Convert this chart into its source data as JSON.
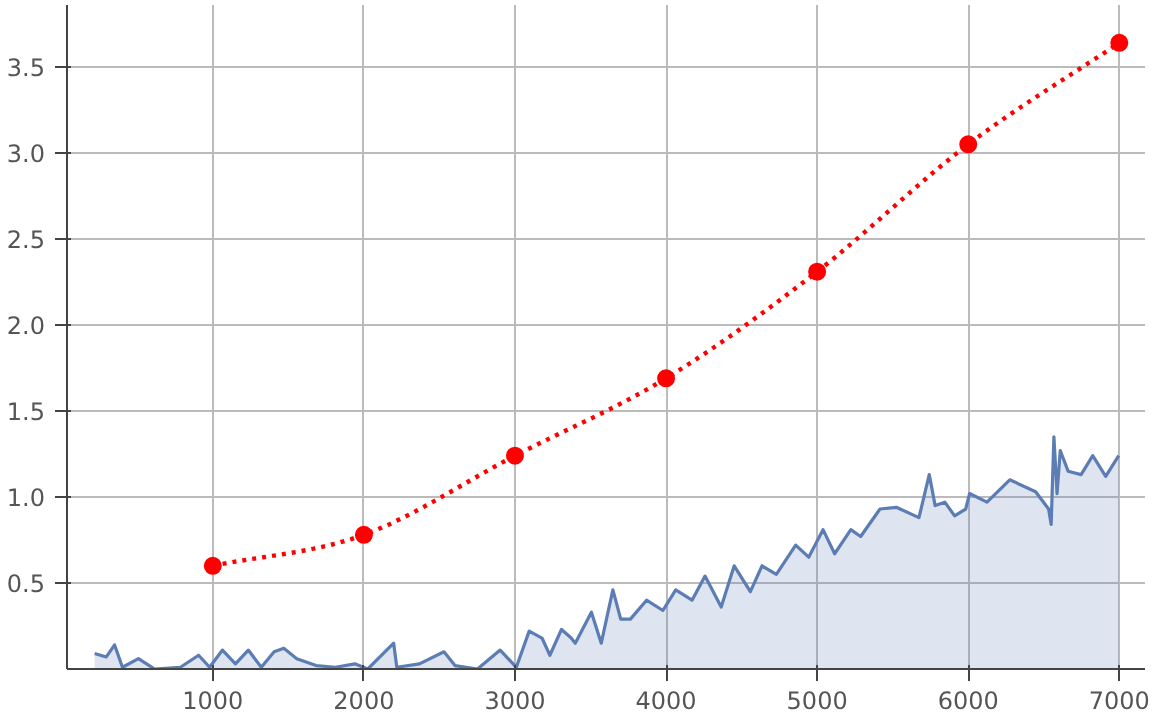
{
  "chart_data": {
    "type": "line",
    "xlim": [
      35,
      7170
    ],
    "ylim": [
      0,
      3.86
    ],
    "xticks": [
      1000,
      2000,
      3000,
      4000,
      5000,
      6000,
      7000
    ],
    "yticks": [
      0.5,
      {
        "value": 1,
        "label": "1.0"
      },
      1.5,
      {
        "value": 2,
        "label": "2.0"
      },
      2.5,
      {
        "value": 3,
        "label": "3.0"
      },
      3.5
    ],
    "grid": true,
    "series": [
      {
        "type": "area",
        "color": "#5b7db4",
        "marker": "none",
        "line_style": "solid",
        "x": [
          218,
          295,
          350,
          402,
          508,
          615,
          786,
          906,
          979,
          1064,
          1150,
          1235,
          1321,
          1406,
          1470,
          1556,
          1684,
          1812,
          1940,
          2026,
          2197,
          2218,
          2368,
          2530,
          2603,
          2752,
          2902,
          3009,
          3094,
          3179,
          3231,
          3308,
          3372,
          3399,
          3506,
          3571,
          3648,
          3700,
          3764,
          3871,
          3979,
          4064,
          4172,
          4258,
          4365,
          4451,
          4558,
          4635,
          4730,
          4858,
          4944,
          5039,
          5116,
          5223,
          5288,
          5416,
          5524,
          5674,
          5742,
          5781,
          5845,
          5910,
          5983,
          6009,
          6124,
          6275,
          6446,
          6532,
          6549,
          6567,
          6588,
          6609,
          6661,
          6747,
          6824,
          6910,
          6996
        ],
        "values": [
          0.09,
          0.07,
          0.14,
          0.01,
          0.06,
          0.0,
          0.01,
          0.08,
          0.01,
          0.11,
          0.03,
          0.11,
          0.01,
          0.1,
          0.12,
          0.06,
          0.02,
          0.01,
          0.03,
          0.0,
          0.15,
          0.01,
          0.03,
          0.1,
          0.02,
          0.0,
          0.11,
          0.01,
          0.22,
          0.18,
          0.08,
          0.23,
          0.18,
          0.15,
          0.33,
          0.15,
          0.46,
          0.29,
          0.29,
          0.4,
          0.34,
          0.46,
          0.4,
          0.54,
          0.36,
          0.6,
          0.45,
          0.6,
          0.55,
          0.72,
          0.65,
          0.81,
          0.67,
          0.81,
          0.77,
          0.93,
          0.94,
          0.88,
          1.13,
          0.95,
          0.97,
          0.89,
          0.93,
          1.02,
          0.97,
          1.1,
          1.03,
          0.93,
          0.84,
          1.35,
          1.02,
          1.27,
          1.15,
          1.13,
          1.24,
          1.12,
          1.24
        ]
      },
      {
        "color": "#ff0000",
        "marker": "circle",
        "line_style": "dotted",
        "x": [
          1000,
          2000,
          3000,
          4000,
          5000,
          6000,
          7000
        ],
        "values": [
          0.6,
          0.78,
          1.24,
          1.69,
          2.31,
          3.05,
          3.64
        ]
      }
    ]
  }
}
